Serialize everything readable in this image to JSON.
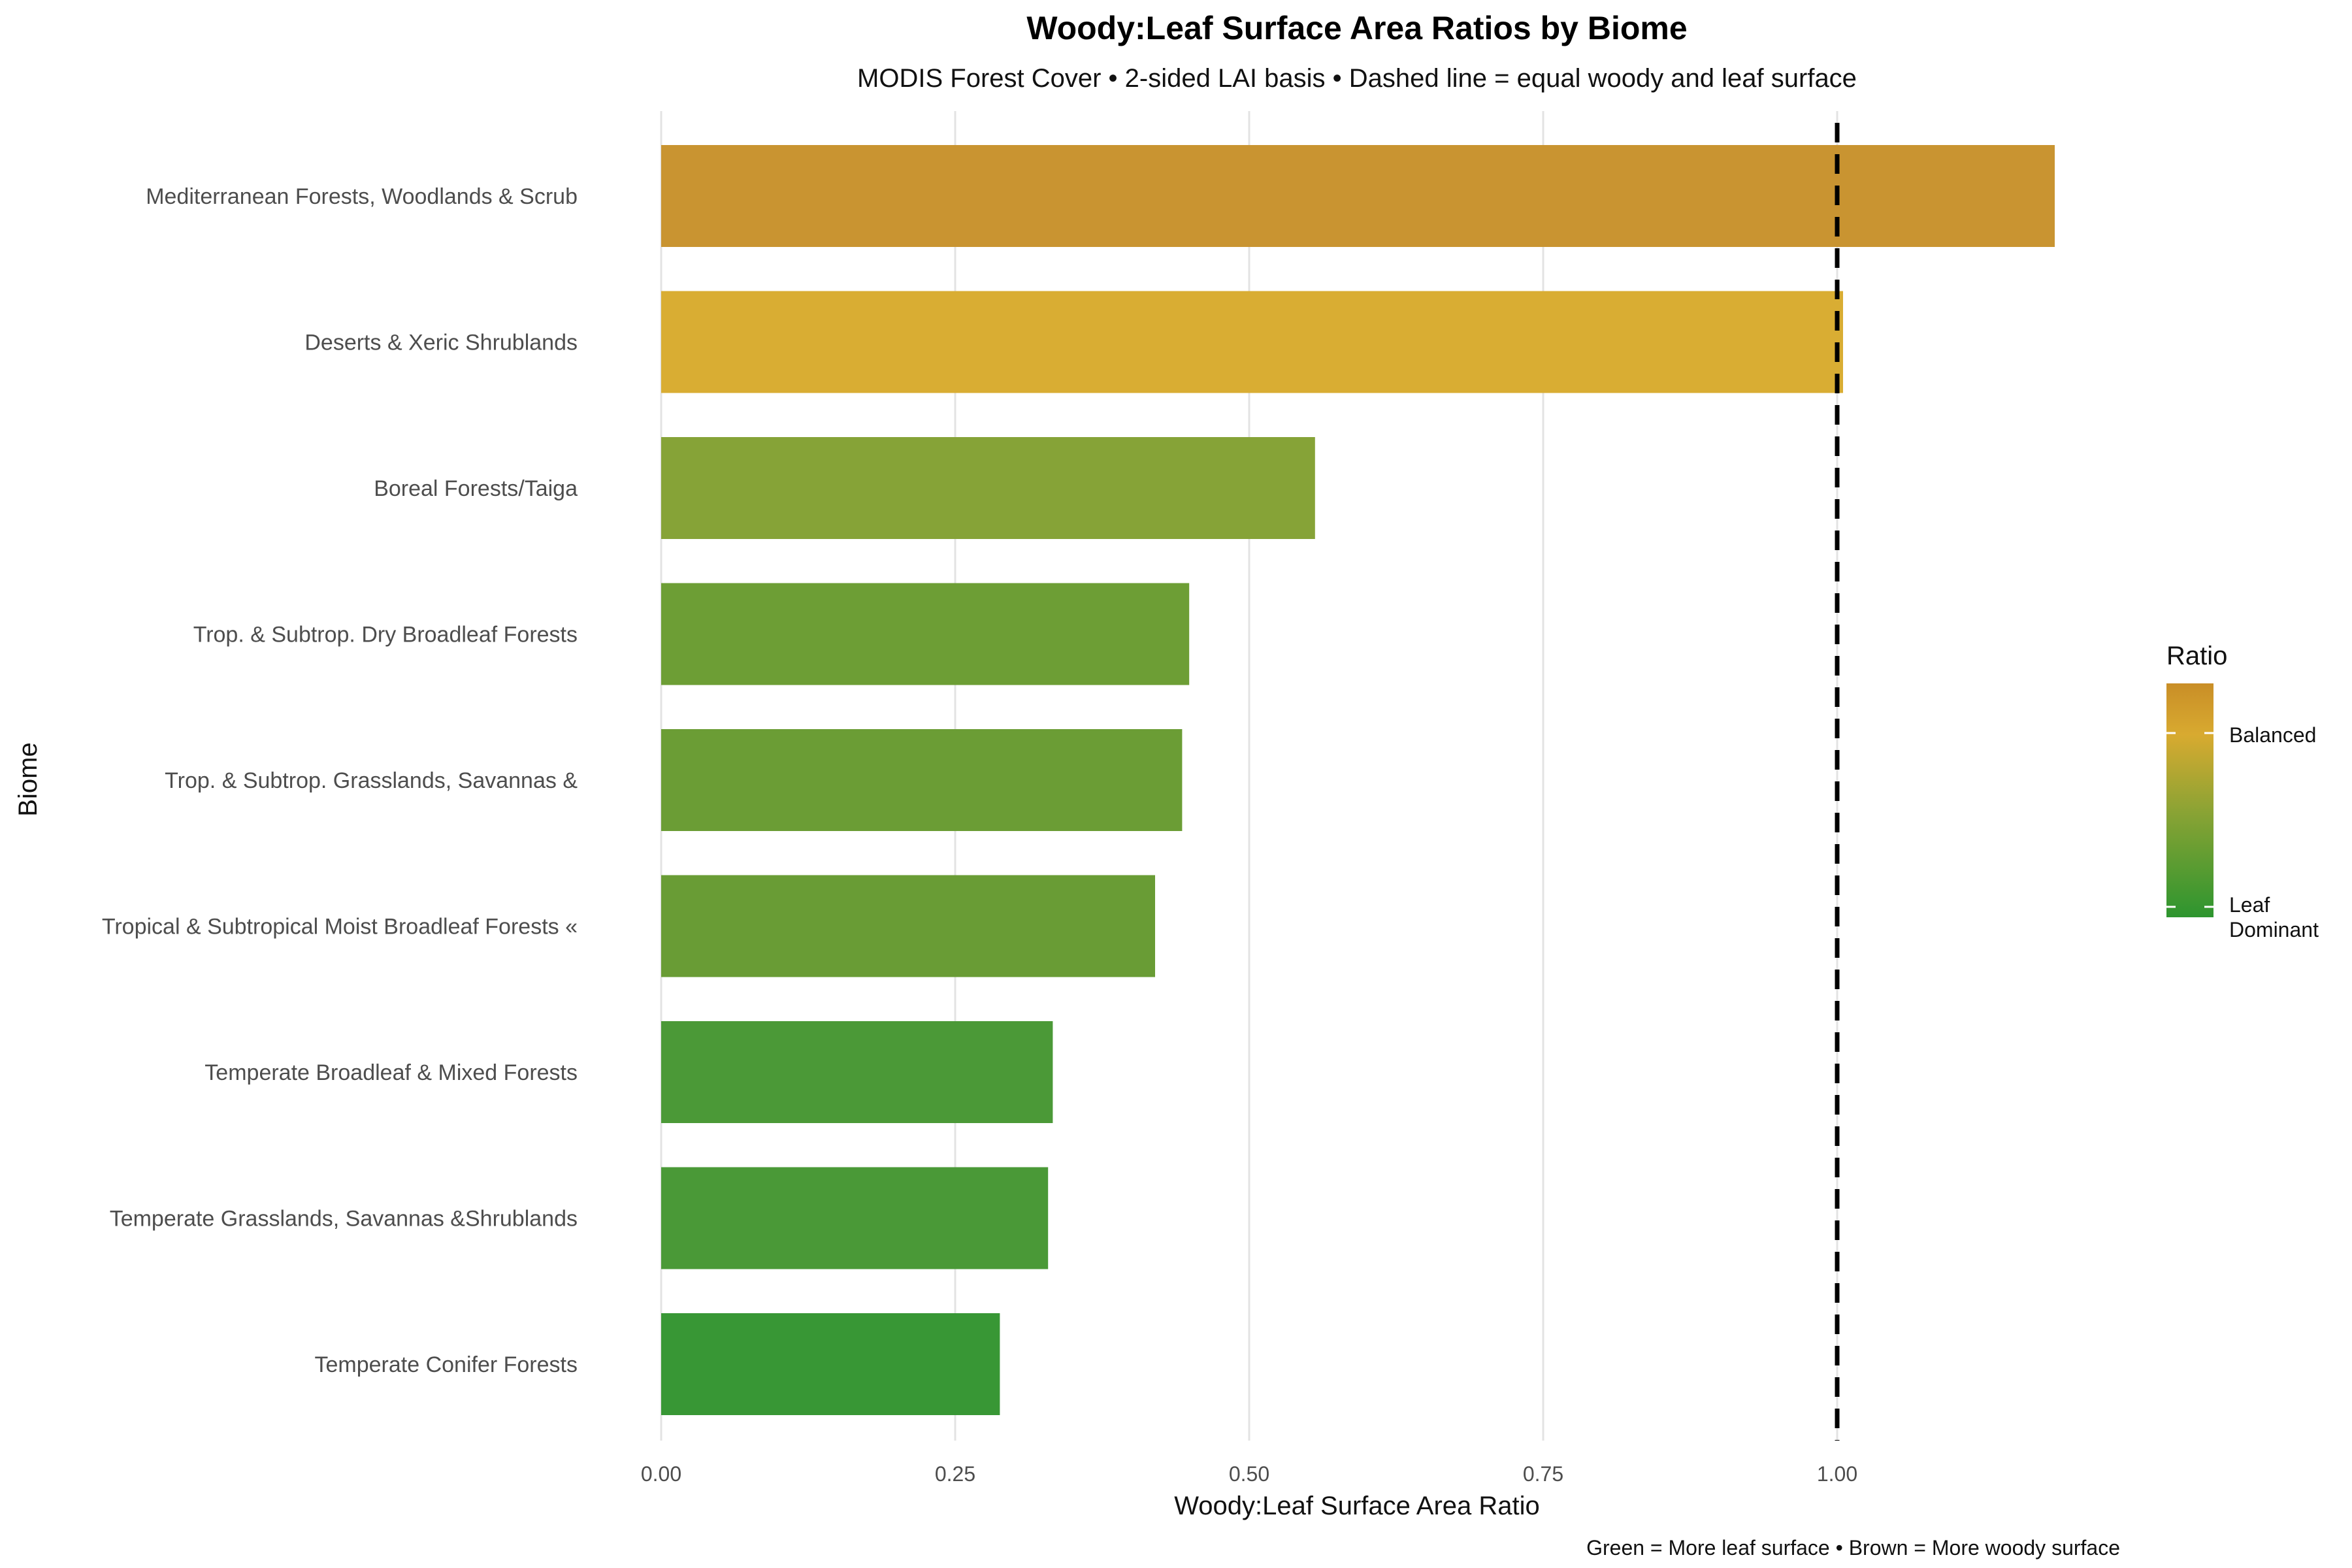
{
  "chart_data": {
    "type": "bar",
    "orientation": "horizontal",
    "title": "Woody:Leaf Surface Area Ratios by Biome",
    "subtitle": "MODIS Forest Cover • 2-sided LAI basis • Dashed line = equal woody and leaf surface",
    "xlabel": "Woody:Leaf Surface Area Ratio",
    "ylabel": "Biome",
    "caption": "Green = More leaf surface • Brown = More woody surface",
    "xlim": [
      0,
      1.25
    ],
    "x_ticks": [
      0.0,
      0.25,
      0.5,
      0.75,
      1.0
    ],
    "x_tick_labels": [
      "0.00",
      "0.25",
      "0.50",
      "0.75",
      "1.00"
    ],
    "grid": "vertical",
    "reference_line": {
      "x": 1.0,
      "style": "dashed"
    },
    "categories": [
      "Mediterranean Forests, Woodlands & Scrub",
      "Deserts & Xeric Shrublands",
      "Boreal Forests/Taiga",
      "Trop. & Subtrop. Dry Broadleaf Forests",
      "Trop. & Subtrop. Grasslands, Savannas &",
      "Tropical & Subtropical Moist Broadleaf Forests «",
      "Temperate Broadleaf & Mixed Forests",
      "Temperate Grasslands, Savannas &Shrublands",
      "Temperate Conifer Forests"
    ],
    "values": [
      1.185,
      1.005,
      0.556,
      0.449,
      0.443,
      0.42,
      0.333,
      0.329,
      0.288
    ],
    "bar_colors": [
      "#c99431",
      "#d9ad33",
      "#86a337",
      "#6d9e35",
      "#6b9d35",
      "#699c35",
      "#4b9937",
      "#4a9937",
      "#389735"
    ],
    "legend": {
      "title": "Ratio",
      "position": "right",
      "gradient": [
        "#c98e27",
        "#d8aa30",
        "#8aa334",
        "#2d952f"
      ],
      "labels": [
        "Balanced",
        "Leaf\nDominant"
      ],
      "label_values": [
        1.0,
        0.25
      ]
    }
  }
}
